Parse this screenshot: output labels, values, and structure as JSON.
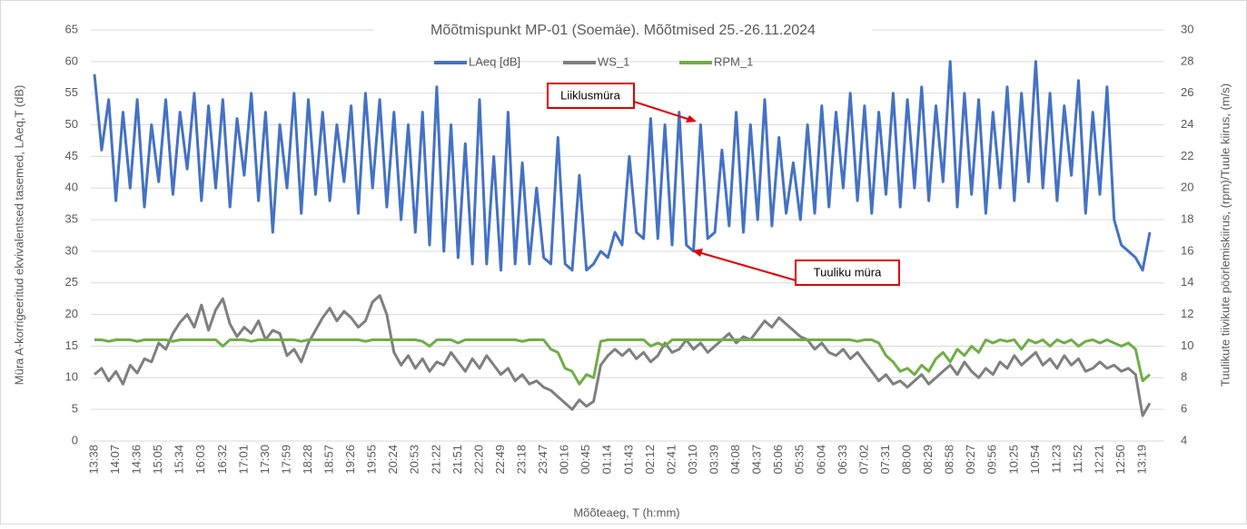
{
  "chart_data": {
    "type": "line",
    "title": "Mõõtmispunkt MP-01 (Soemäe). Mõõtmised 25.-26.11.2024",
    "x_label": "Mõõteaeg, T (h:mm)",
    "y_label": "Müra A-korrigeeritud ekvivalentsed tasemed, LAeq,T (dB)",
    "y2_label": "Tuulikute tiivikute pöörlemiskiirus, (rpm)/Tuule kiirus, (m/s)",
    "categories": [
      "13:38",
      null,
      null,
      "14:07",
      null,
      null,
      "14:36",
      null,
      null,
      "15:05",
      null,
      null,
      "15:34",
      null,
      null,
      "16:03",
      null,
      null,
      "16:32",
      null,
      null,
      "17:01",
      null,
      null,
      "17:30",
      null,
      null,
      "17:59",
      null,
      null,
      "18:28",
      null,
      null,
      "18:57",
      null,
      null,
      "19:26",
      null,
      null,
      "19:55",
      null,
      null,
      "20:24",
      null,
      null,
      "20:53",
      null,
      null,
      "21:22",
      null,
      null,
      "21:51",
      null,
      null,
      "22:20",
      null,
      null,
      "22:49",
      null,
      null,
      "23:18",
      null,
      null,
      "23:47",
      null,
      null,
      "00:16",
      null,
      null,
      "00:45",
      null,
      null,
      "01:14",
      null,
      null,
      "01:43",
      null,
      null,
      "02:12",
      null,
      null,
      "02:41",
      null,
      null,
      "03:10",
      null,
      null,
      "03:39",
      null,
      null,
      "04:08",
      null,
      null,
      "04:37",
      null,
      null,
      "05:06",
      null,
      null,
      "05:35",
      null,
      null,
      "06:04",
      null,
      null,
      "06:33",
      null,
      null,
      "07:02",
      null,
      null,
      "07:31",
      null,
      null,
      "08:00",
      null,
      null,
      "08:29",
      null,
      null,
      "08:58",
      null,
      null,
      "09:27",
      null,
      null,
      "09:56",
      null,
      null,
      "10:25",
      null,
      null,
      "10:54",
      null,
      null,
      "11:23",
      null,
      null,
      "11:52",
      null,
      null,
      "12:21",
      null,
      null,
      "12:50",
      null,
      null,
      "13:19",
      null
    ],
    "series": [
      {
        "name": "LAeq [dB]",
        "color": "#4472c4",
        "values": [
          58,
          46,
          54,
          38,
          52,
          40,
          54,
          37,
          50,
          41,
          54,
          39,
          52,
          43,
          55,
          38,
          53,
          40,
          54,
          37,
          51,
          42,
          55,
          38,
          52,
          33,
          50,
          40,
          55,
          36,
          54,
          39,
          52,
          38,
          50,
          41,
          53,
          36,
          55,
          40,
          54,
          37,
          52,
          35,
          50,
          33,
          52,
          31,
          56,
          30,
          50,
          29,
          47,
          28,
          54,
          28,
          45,
          27,
          52,
          28,
          44,
          28,
          40,
          29,
          28,
          48,
          28,
          27,
          42,
          27,
          28,
          30,
          29,
          33,
          31,
          45,
          33,
          32,
          51,
          32,
          50,
          31,
          52,
          31,
          30,
          50,
          32,
          33,
          46,
          34,
          52,
          33,
          50,
          35,
          54,
          34,
          48,
          36,
          44,
          35,
          50,
          36,
          53,
          37,
          52,
          40,
          55,
          38,
          53,
          36,
          52,
          39,
          55,
          37,
          54,
          40,
          56,
          38,
          53,
          41,
          60,
          37,
          55,
          39,
          54,
          36,
          52,
          40,
          56,
          38,
          55,
          41,
          60,
          40,
          55,
          38,
          53,
          42,
          57,
          36,
          52,
          39,
          56,
          35,
          31,
          30,
          29,
          27,
          33
        ]
      },
      {
        "name": "WS_1",
        "color": "#7f7f7f",
        "axis": "y2",
        "values": [
          8.2,
          8.6,
          7.8,
          8.4,
          7.6,
          8.8,
          8.3,
          9.2,
          9.0,
          10.2,
          9.8,
          10.8,
          11.5,
          12.0,
          11.2,
          12.6,
          11.0,
          12.3,
          13.0,
          11.4,
          10.6,
          11.2,
          10.8,
          11.6,
          10.4,
          11.0,
          10.8,
          9.4,
          9.8,
          9.0,
          10.2,
          11.0,
          11.8,
          12.4,
          11.6,
          12.2,
          11.8,
          11.2,
          11.6,
          12.8,
          13.2,
          12.0,
          9.6,
          8.8,
          9.4,
          8.6,
          9.2,
          8.4,
          9.0,
          8.8,
          9.6,
          9.0,
          8.4,
          9.2,
          8.6,
          9.4,
          8.8,
          8.2,
          8.6,
          7.8,
          8.2,
          7.6,
          7.8,
          7.4,
          7.2,
          6.8,
          6.4,
          6.0,
          6.6,
          6.2,
          6.5,
          8.8,
          9.4,
          9.8,
          9.4,
          9.8,
          9.2,
          9.6,
          9.0,
          9.4,
          10.2,
          9.6,
          9.8,
          10.4,
          9.8,
          10.2,
          9.6,
          10.0,
          10.4,
          10.8,
          10.2,
          10.6,
          10.4,
          11.0,
          11.6,
          11.2,
          11.8,
          11.4,
          11.0,
          10.6,
          10.4,
          9.8,
          10.2,
          9.6,
          9.4,
          9.8,
          9.2,
          9.6,
          9.0,
          8.4,
          7.8,
          8.2,
          7.6,
          7.8,
          7.4,
          7.8,
          8.2,
          7.6,
          8.0,
          8.4,
          8.8,
          8.2,
          9.0,
          8.4,
          8.0,
          8.6,
          8.2,
          9.0,
          8.6,
          9.4,
          8.8,
          9.2,
          9.6,
          8.8,
          9.2,
          8.6,
          9.4,
          8.8,
          9.2,
          8.4,
          8.6,
          9.0,
          8.6,
          8.8,
          8.4,
          8.6,
          8.2,
          5.6,
          6.4
        ]
      },
      {
        "name": "RPM_1",
        "color": "#70ad47",
        "axis": "y2",
        "values": [
          10.4,
          10.4,
          10.3,
          10.4,
          10.4,
          10.4,
          10.3,
          10.4,
          10.4,
          10.4,
          10.4,
          10.3,
          10.4,
          10.4,
          10.4,
          10.4,
          10.4,
          10.4,
          10.0,
          10.4,
          10.4,
          10.4,
          10.3,
          10.4,
          10.4,
          10.4,
          10.4,
          10.4,
          10.4,
          10.3,
          10.4,
          10.4,
          10.4,
          10.4,
          10.4,
          10.4,
          10.4,
          10.4,
          10.3,
          10.4,
          10.4,
          10.4,
          10.4,
          10.4,
          10.4,
          10.4,
          10.3,
          10.0,
          10.4,
          10.4,
          10.4,
          10.2,
          10.4,
          10.4,
          10.4,
          10.4,
          10.4,
          10.4,
          10.4,
          10.4,
          10.3,
          10.4,
          10.4,
          10.4,
          9.8,
          9.6,
          8.6,
          8.4,
          7.6,
          8.2,
          8.0,
          10.3,
          10.4,
          10.4,
          10.4,
          10.4,
          10.4,
          10.4,
          10.0,
          10.2,
          10.0,
          10.4,
          10.4,
          10.4,
          10.4,
          10.4,
          10.4,
          10.4,
          10.4,
          10.4,
          10.4,
          10.4,
          10.4,
          10.4,
          10.4,
          10.4,
          10.4,
          10.4,
          10.4,
          10.4,
          10.4,
          10.4,
          10.4,
          10.4,
          10.4,
          10.4,
          10.4,
          10.3,
          10.4,
          10.4,
          10.2,
          9.4,
          9.0,
          8.4,
          8.6,
          8.2,
          8.8,
          8.4,
          9.2,
          9.6,
          9.0,
          9.8,
          9.4,
          10.0,
          9.6,
          10.4,
          10.2,
          10.4,
          10.3,
          10.4,
          9.8,
          10.4,
          10.2,
          10.4,
          10.0,
          10.4,
          10.2,
          10.4,
          10.0,
          10.3,
          10.4,
          10.2,
          10.4,
          10.2,
          10.0,
          10.2,
          9.8,
          7.8,
          8.2
        ]
      }
    ],
    "ylim": [
      0,
      65
    ],
    "yticks": [
      0,
      5,
      10,
      15,
      20,
      25,
      30,
      35,
      40,
      45,
      50,
      55,
      60,
      65
    ],
    "y2lim": [
      4,
      30
    ],
    "y2ticks": [
      4,
      6,
      8,
      10,
      12,
      14,
      16,
      18,
      20,
      22,
      24,
      26,
      28,
      30
    ],
    "grid": true,
    "annotations": [
      {
        "text": "Liiklusmüra"
      },
      {
        "text": "Tuuliku müra"
      }
    ]
  }
}
